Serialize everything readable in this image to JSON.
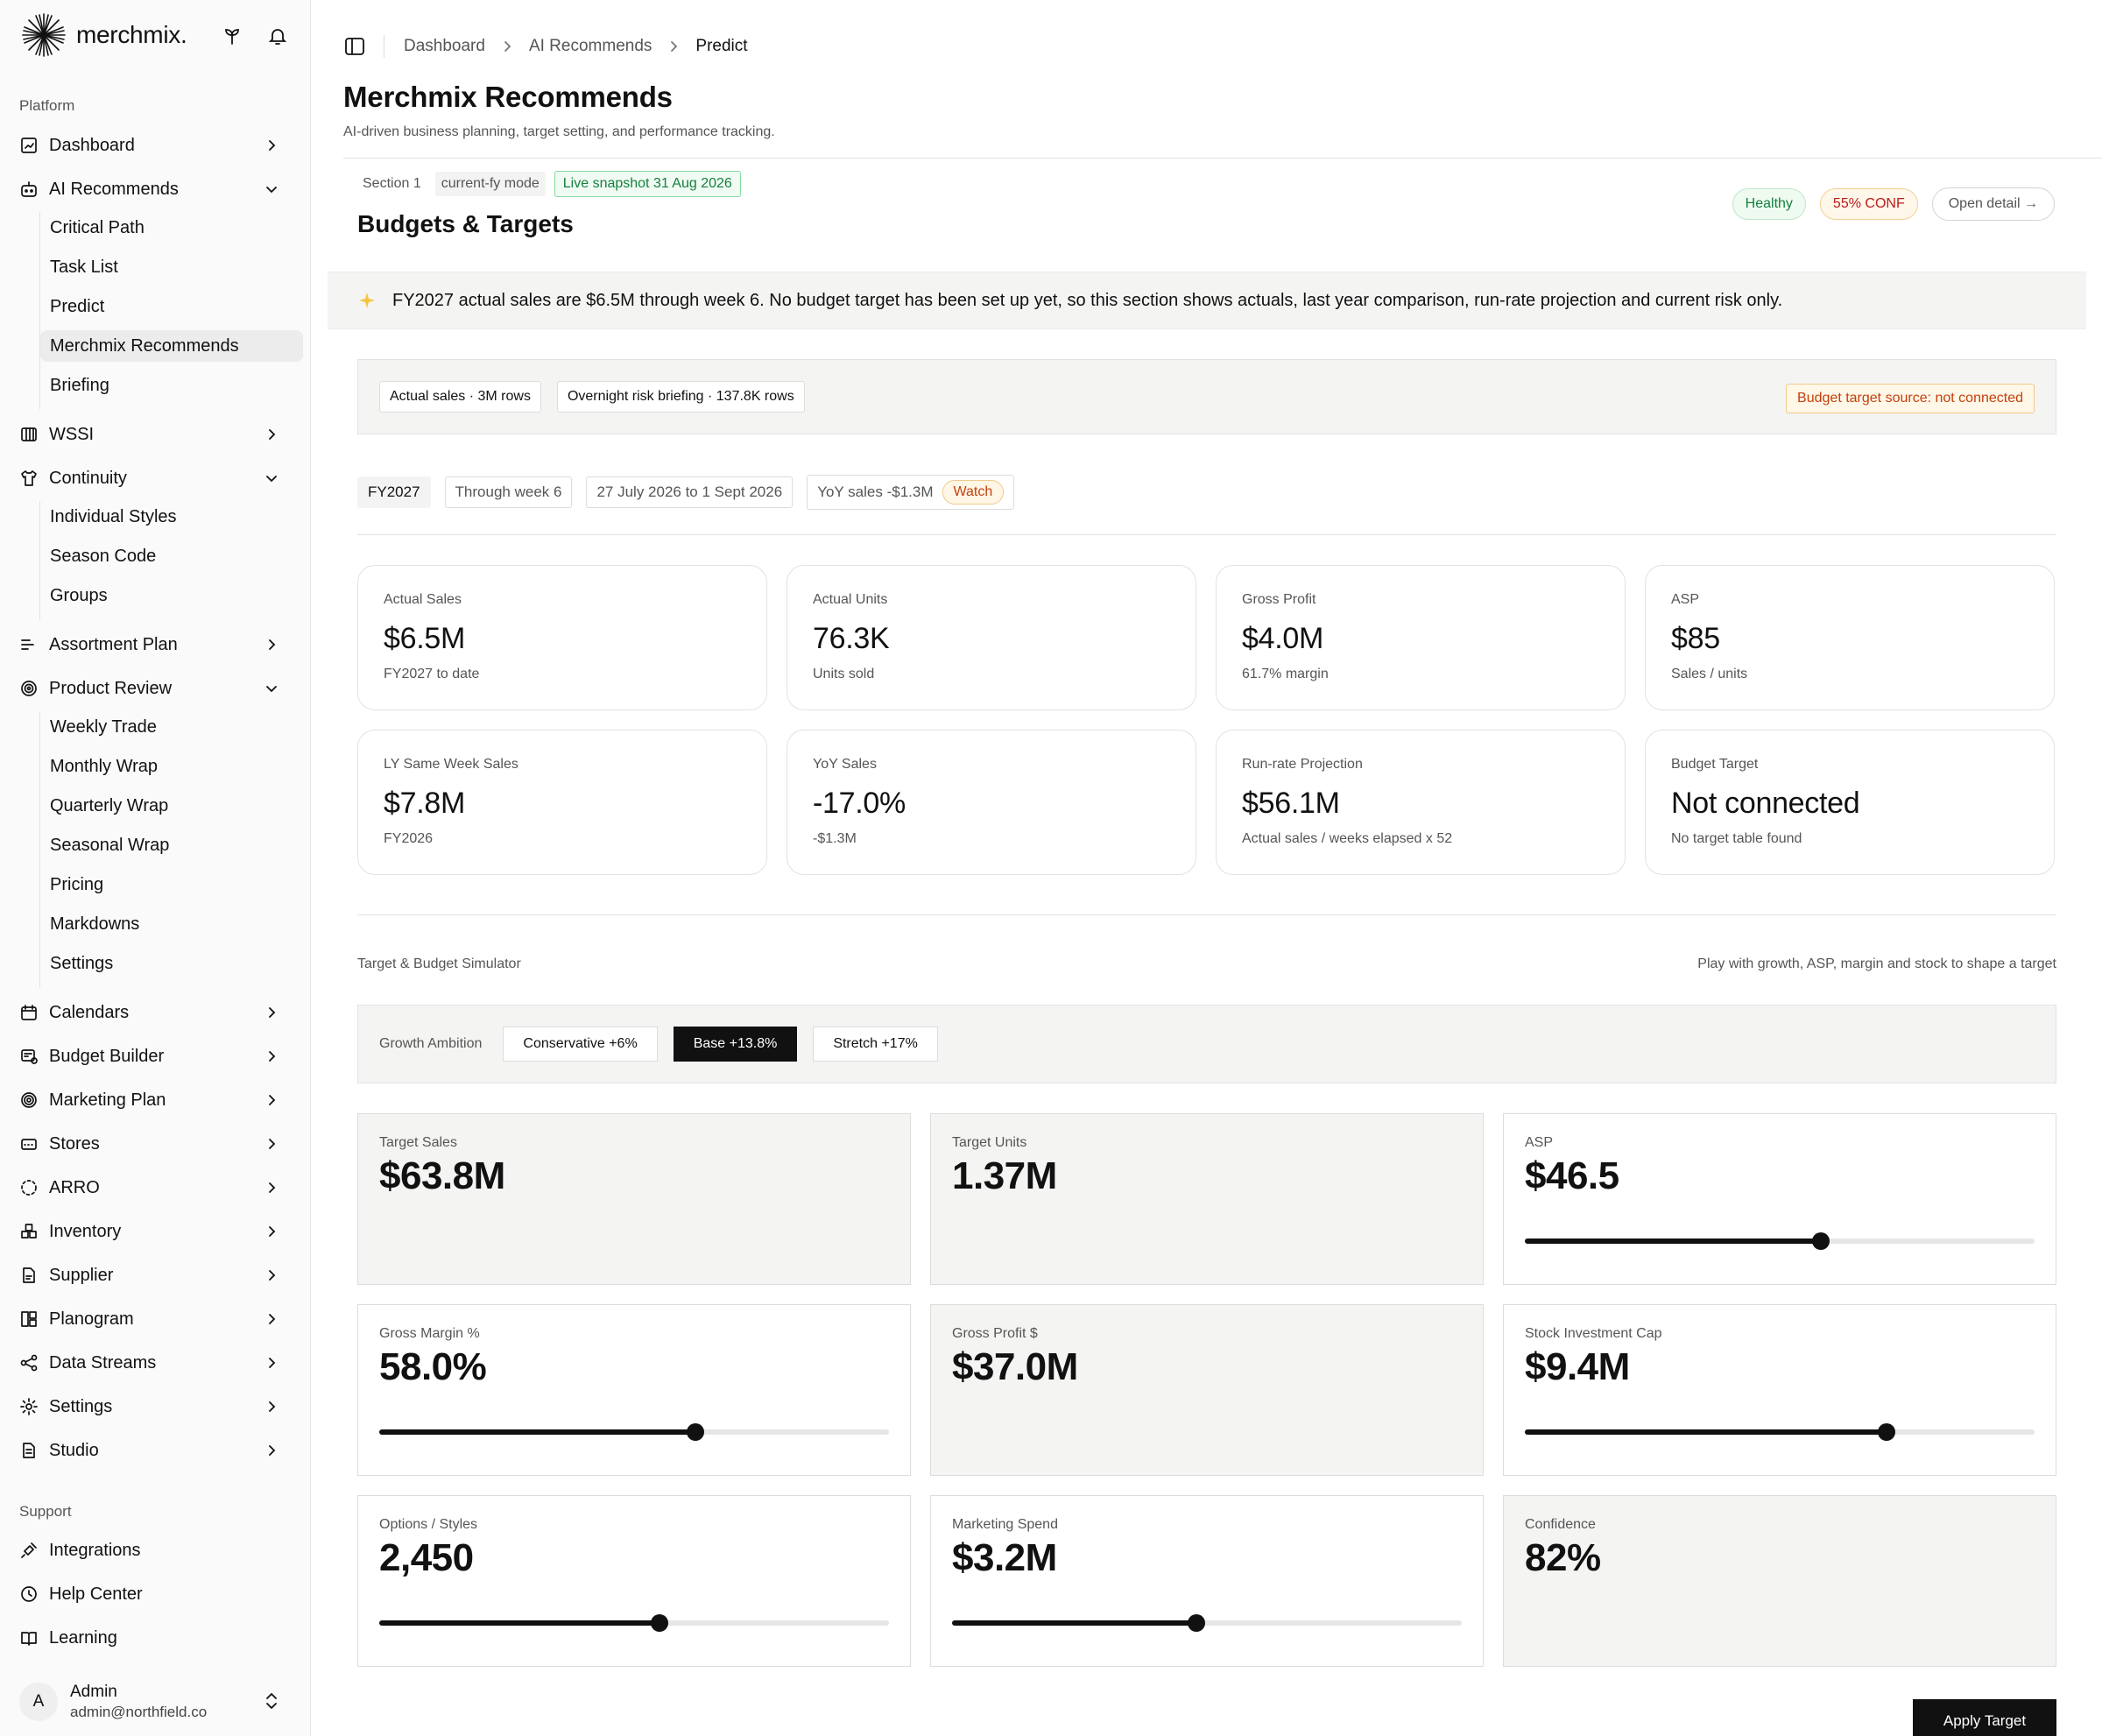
{
  "brand": {
    "name": "merchmix."
  },
  "sidebar": {
    "platform_label": "Platform",
    "support_label": "Support",
    "items": [
      {
        "label": "Dashboard",
        "icon": "dashboard-icon"
      },
      {
        "label": "AI Recommends",
        "icon": "bot-icon",
        "children": [
          "Critical Path",
          "Task List",
          "Predict",
          "Merchmix Recommends",
          "Briefing"
        ]
      },
      {
        "label": "WSSI",
        "icon": "columns-icon"
      },
      {
        "label": "Continuity",
        "icon": "shirt-icon",
        "children": [
          "Individual Styles",
          "Season Code",
          "Groups"
        ]
      },
      {
        "label": "Assortment Plan",
        "icon": "list-filter-icon"
      },
      {
        "label": "Product Review",
        "icon": "target-icon",
        "children": [
          "Weekly Trade",
          "Monthly Wrap",
          "Quarterly Wrap",
          "Seasonal Wrap",
          "Pricing",
          "Markdowns",
          "Settings"
        ]
      },
      {
        "label": "Calendars",
        "icon": "calendar-icon"
      },
      {
        "label": "Budget Builder",
        "icon": "budget-icon"
      },
      {
        "label": "Marketing Plan",
        "icon": "megaphone-icon"
      },
      {
        "label": "Stores",
        "icon": "store-icon"
      },
      {
        "label": "ARRO",
        "icon": "dashed-circle-icon"
      },
      {
        "label": "Inventory",
        "icon": "boxes-icon"
      },
      {
        "label": "Supplier",
        "icon": "supplier-icon"
      },
      {
        "label": "Planogram",
        "icon": "planogram-icon"
      },
      {
        "label": "Data Streams",
        "icon": "share-icon"
      },
      {
        "label": "Settings",
        "icon": "gear-icon"
      },
      {
        "label": "Studio",
        "icon": "studio-icon"
      }
    ],
    "support_items": [
      {
        "label": "Integrations",
        "icon": "plug-icon"
      },
      {
        "label": "Help Center",
        "icon": "help-icon"
      },
      {
        "label": "Learning",
        "icon": "book-icon"
      }
    ],
    "user": {
      "initial": "A",
      "name": "Admin",
      "email": "admin@northfield.co"
    }
  },
  "breadcrumb": [
    "Dashboard",
    "AI Recommends",
    "Predict"
  ],
  "page": {
    "title": "Merchmix Recommends",
    "subtitle": "AI-driven business planning, target setting, and performance tracking."
  },
  "section": {
    "number": "Section 1",
    "mode": "current-fy mode",
    "snapshot": "Live snapshot 31 Aug 2026",
    "title": "Budgets & Targets",
    "health": "Healthy",
    "confidence": "55% CONF",
    "open_detail": "Open detail →"
  },
  "insight": "FY2027 actual sales are $6.5M through week 6. No budget target has been set up yet, so this section shows actuals, last year comparison, run-rate projection and current risk only.",
  "sources": {
    "chips": [
      "Actual sales · 3M rows",
      "Overnight risk briefing · 137.8K rows"
    ],
    "warning": "Budget target source: not connected"
  },
  "period": {
    "fy": "FY2027",
    "through": "Through week 6",
    "range": "27 July 2026 to 1 Sept 2026",
    "yoy": "YoY sales -$1.3M",
    "status": "Watch"
  },
  "kpis": [
    {
      "label": "Actual Sales",
      "value": "$6.5M",
      "note": "FY2027 to date"
    },
    {
      "label": "Actual Units",
      "value": "76.3K",
      "note": "Units sold"
    },
    {
      "label": "Gross Profit",
      "value": "$4.0M",
      "note": "61.7% margin"
    },
    {
      "label": "ASP",
      "value": "$85",
      "note": "Sales / units"
    },
    {
      "label": "LY Same Week Sales",
      "value": "$7.8M",
      "note": "FY2026"
    },
    {
      "label": "YoY Sales",
      "value": "-17.0%",
      "note": "-$1.3M"
    },
    {
      "label": "Run-rate Projection",
      "value": "$56.1M",
      "note": "Actual sales / weeks elapsed x 52"
    },
    {
      "label": "Budget Target",
      "value": "Not connected",
      "note": "No target table found"
    }
  ],
  "simulator": {
    "label": "Target & Budget Simulator",
    "hint": "Play with growth, ASP, margin and stock to shape a target",
    "ambition_label": "Growth Ambition",
    "options": [
      "Conservative +6%",
      "Base +13.8%",
      "Stretch +17%"
    ],
    "selected": "Base +13.8%",
    "cards": [
      {
        "label": "Target Sales",
        "value": "$63.8M",
        "slider": null
      },
      {
        "label": "Target Units",
        "value": "1.37M",
        "slider": null
      },
      {
        "label": "ASP",
        "value": "$46.5",
        "slider": 0.58
      },
      {
        "label": "Gross Margin %",
        "value": "58.0%",
        "slider": 0.62
      },
      {
        "label": "Gross Profit $",
        "value": "$37.0M",
        "slider": null
      },
      {
        "label": "Stock Investment Cap",
        "value": "$9.4M",
        "slider": 0.71
      },
      {
        "label": "Options / Styles",
        "value": "2,450",
        "slider": 0.55
      },
      {
        "label": "Marketing Spend",
        "value": "$3.2M",
        "slider": 0.48
      },
      {
        "label": "Confidence",
        "value": "82%",
        "slider": null
      }
    ],
    "apply_label": "Apply Target"
  },
  "colors": {
    "accent": "#111111",
    "healthy": "#15803d",
    "warning": "#c2410c",
    "risk": "#b91c1c",
    "panel": "#f4f4f3"
  }
}
